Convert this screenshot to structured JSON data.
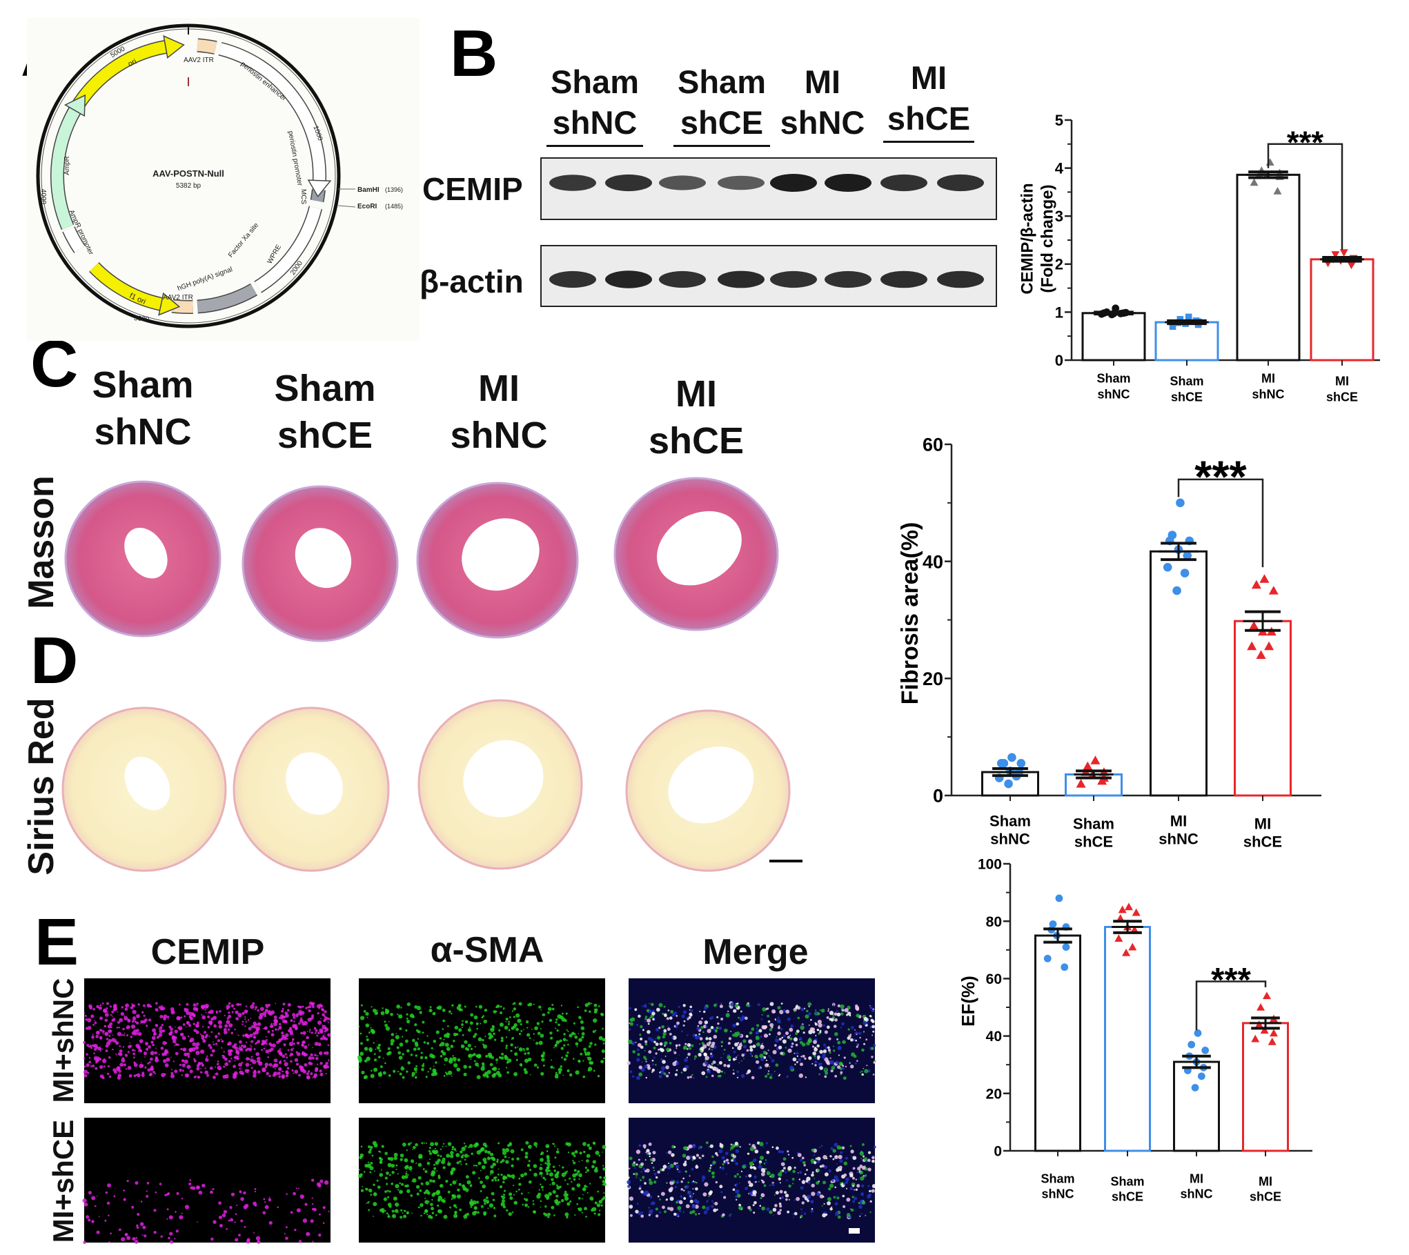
{
  "panels": {
    "a": "A",
    "b": "B",
    "c": "C",
    "d": "D",
    "e": "E"
  },
  "plasmid": {
    "name": "AAV-POSTN-Null",
    "size": "5382 bp",
    "features": {
      "ori": "ori",
      "itr_top": "AAV2 ITR",
      "enhancer": "periostin enhancer",
      "promoter": "periostin promoter",
      "mcs": "MCS",
      "wpre": "WPRE",
      "factor_xa": "Factor Xa site",
      "polya": "hGH poly(A) signal",
      "itr_bottom": "AAV2 ITR",
      "f1ori": "f1 ori",
      "ampr_promoter": "AmpR promoter",
      "ampr": "AmpR"
    },
    "ticks": {
      "t1000": "1000",
      "t2000": "2000",
      "t3000": "3000",
      "t4000": "4000",
      "t5000": "5000"
    },
    "sites": [
      {
        "name": "BamHI",
        "pos": "(1396)"
      },
      {
        "name": "EcoRI",
        "pos": "(1485)"
      }
    ]
  },
  "blot": {
    "groups": [
      {
        "line1": "Sham",
        "line2": "shNC"
      },
      {
        "line1": "Sham",
        "line2": "shCE"
      },
      {
        "line1": "MI",
        "line2": "shNC"
      },
      {
        "line1": "MI",
        "line2": "shCE"
      }
    ],
    "rows": [
      {
        "label": "CEMIP",
        "band_intensity": [
          0.8,
          0.85,
          0.6,
          0.55,
          1.0,
          1.0,
          0.85,
          0.85
        ]
      },
      {
        "label": "β-actin",
        "band_intensity": [
          0.85,
          0.95,
          0.85,
          0.9,
          0.85,
          0.85,
          0.88,
          0.88
        ]
      }
    ]
  },
  "histology": {
    "groups": [
      {
        "line1": "Sham",
        "line2": "shNC"
      },
      {
        "line1": "Sham",
        "line2": "shCE"
      },
      {
        "line1": "MI",
        "line2": "shNC"
      },
      {
        "line1": "MI",
        "line2": "shCE"
      }
    ],
    "stains": {
      "masson": "Masson",
      "sirius": "Sirius Red"
    }
  },
  "immunofluorescence": {
    "columns": [
      "CEMIP",
      "α-SMA",
      "Merge"
    ],
    "rows": [
      "MI+shNC",
      "MI+shCE"
    ]
  },
  "colors": {
    "shNC_bar": "#111111",
    "shCE_blue": "#3d8fe8",
    "shCE_red": "#e8262a",
    "magenta": "#e020e0",
    "green": "#22d022"
  },
  "chart_data": [
    {
      "type": "bar",
      "title": "",
      "ylabel": "CEMIP/β-actin",
      "ylabel2": "(Fold change)",
      "xlabel": "",
      "categories": [
        [
          "Sham",
          "shNC"
        ],
        [
          "Sham",
          "shCE"
        ],
        [
          "MI",
          "shNC"
        ],
        [
          "MI",
          "shCE"
        ]
      ],
      "ylim": [
        0,
        5
      ],
      "yticks": [
        "0",
        "1",
        "2",
        "3",
        "4",
        "5"
      ],
      "values": [
        0.98,
        0.79,
        3.86,
        2.1
      ],
      "sem": [
        0.02,
        0.03,
        0.06,
        0.04
      ],
      "points": [
        [
          1.08,
          1.0,
          0.99,
          0.98,
          0.97,
          0.98,
          0.96,
          0.97,
          0.95
        ],
        [
          0.9,
          0.85,
          0.8,
          0.78,
          0.76,
          0.74,
          0.7,
          0.82
        ],
        [
          4.12,
          3.95,
          3.9,
          3.87,
          3.85,
          3.82,
          3.7,
          3.52
        ],
        [
          2.24,
          2.2,
          2.12,
          2.1,
          2.07,
          2.05,
          2.02,
          1.98
        ]
      ],
      "markers": [
        "circle",
        "square",
        "triangle",
        "triangle-down"
      ],
      "bar_colors": [
        "#111111",
        "#3d8fe8",
        "#111111",
        "#e8262a"
      ],
      "point_colors": [
        "#111111",
        "#3d8fe8",
        "#777777",
        "#e8262a"
      ],
      "significance": {
        "from": 2,
        "to": 3,
        "label": "***",
        "y": 4.5,
        "left_drop": 4.0,
        "right_drop": 2.3
      }
    },
    {
      "type": "bar",
      "title": "",
      "ylabel": "Fibrosis area(%)",
      "xlabel": "",
      "categories": [
        [
          "Sham",
          "shNC"
        ],
        [
          "Sham",
          "shCE"
        ],
        [
          "MI",
          "shNC"
        ],
        [
          "MI",
          "shCE"
        ]
      ],
      "ylim": [
        0,
        60
      ],
      "yticks": [
        "0",
        "20",
        "40",
        "60"
      ],
      "values": [
        4.0,
        3.6,
        41.7,
        29.8
      ],
      "sem": [
        0.6,
        0.6,
        1.4,
        1.6
      ],
      "points": [
        [
          6.5,
          5.5,
          5.5,
          5.5,
          4.2,
          4.0,
          3.0,
          3.3,
          2.0
        ],
        [
          6.0,
          5.0,
          4.0,
          4.0,
          3.5,
          3.0,
          2.0,
          2.5
        ],
        [
          50,
          44.5,
          43.5,
          43.5,
          42,
          41,
          39,
          38,
          35
        ],
        [
          37,
          36,
          35,
          29,
          28,
          28,
          25.5,
          25.5,
          24
        ]
      ],
      "markers": [
        "circle",
        "triangle",
        "circle",
        "triangle"
      ],
      "bar_colors": [
        "#111111",
        "#3d8fe8",
        "#111111",
        "#e8262a"
      ],
      "point_colors": [
        "#3d8fe8",
        "#e8262a",
        "#3d8fe8",
        "#e8262a"
      ],
      "significance": {
        "from": 2,
        "to": 3,
        "label": "***",
        "y": 54,
        "left_drop": 51,
        "right_drop": 39
      }
    },
    {
      "type": "bar",
      "title": "",
      "ylabel": "EF(%)",
      "xlabel": "",
      "categories": [
        [
          "Sham",
          "shNC"
        ],
        [
          "Sham",
          "shCE"
        ],
        [
          "MI",
          "shNC"
        ],
        [
          "MI",
          "shCE"
        ]
      ],
      "ylim": [
        0,
        100
      ],
      "yticks": [
        "0",
        "20",
        "40",
        "60",
        "80",
        "100"
      ],
      "values": [
        75,
        78,
        31,
        44.5
      ],
      "sem": [
        2.3,
        2.0,
        2.0,
        1.8
      ],
      "points": [
        [
          88,
          79,
          78,
          77,
          75,
          71,
          67,
          64
        ],
        [
          85,
          84,
          83,
          81,
          78,
          77,
          74,
          71,
          69
        ],
        [
          41,
          37,
          35,
          33,
          31,
          29,
          28,
          26,
          22
        ],
        [
          54,
          50,
          46,
          44,
          42,
          41,
          39,
          38
        ]
      ],
      "markers": [
        "circle",
        "triangle",
        "circle",
        "triangle"
      ],
      "bar_colors": [
        "#111111",
        "#3d8fe8",
        "#111111",
        "#e8262a"
      ],
      "point_colors": [
        "#3d8fe8",
        "#e8262a",
        "#3d8fe8",
        "#e8262a"
      ],
      "significance": {
        "from": 2,
        "to": 3,
        "label": "***",
        "y": 59,
        "left_drop": 42,
        "right_drop": 57
      }
    }
  ]
}
